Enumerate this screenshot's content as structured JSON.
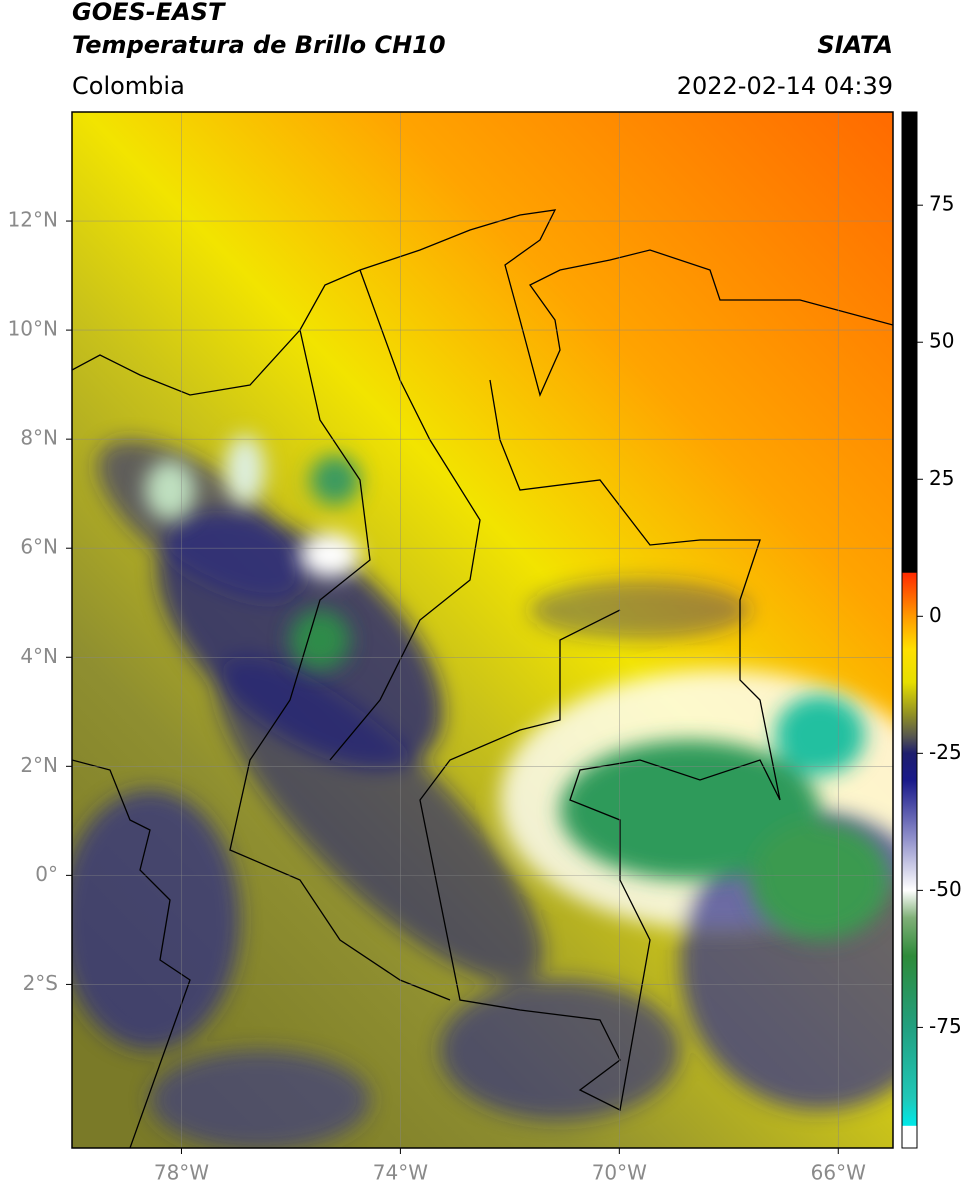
{
  "header": {
    "title": "GOES-EAST",
    "subtitle": "Temperatura de Brillo CH10",
    "source": "SIATA",
    "region": "Colombia",
    "timestamp": "2022-02-14 04:39"
  },
  "map": {
    "xlim": [
      -80,
      -65
    ],
    "ylim": [
      -5,
      14
    ],
    "xticks": [
      {
        "value": -78,
        "label": "78°W"
      },
      {
        "value": -74,
        "label": "74°W"
      },
      {
        "value": -70,
        "label": "70°W"
      },
      {
        "value": -66,
        "label": "66°W"
      }
    ],
    "yticks": [
      {
        "value": 12,
        "label": "12°N"
      },
      {
        "value": 10,
        "label": "10°N"
      },
      {
        "value": 8,
        "label": "8°N"
      },
      {
        "value": 6,
        "label": "6°N"
      },
      {
        "value": 4,
        "label": "4°N"
      },
      {
        "value": 2,
        "label": "2°N"
      },
      {
        "value": 0,
        "label": "0°"
      },
      {
        "value": -2,
        "label": "2°S"
      }
    ],
    "grid": true
  },
  "colorbar": {
    "lim": [
      -97,
      92
    ],
    "ticks": [
      75,
      50,
      25,
      0,
      -25,
      -50,
      -75
    ],
    "stops": [
      {
        "value": -97,
        "color": "#ffffff"
      },
      {
        "value": -93,
        "color": "#ffffff"
      },
      {
        "value": -92.9,
        "color": "#00e8e8"
      },
      {
        "value": -88,
        "color": "#20c8b8"
      },
      {
        "value": -75,
        "color": "#22a080"
      },
      {
        "value": -62,
        "color": "#2e8b3a"
      },
      {
        "value": -55,
        "color": "#80b078"
      },
      {
        "value": -50,
        "color": "#ffffff"
      },
      {
        "value": -40,
        "color": "#8a8ac8"
      },
      {
        "value": -30,
        "color": "#1a1a8a"
      },
      {
        "value": -25,
        "color": "#1e1e6e"
      },
      {
        "value": -22,
        "color": "#555550"
      },
      {
        "value": -18,
        "color": "#8f8f25"
      },
      {
        "value": -12,
        "color": "#e6df00"
      },
      {
        "value": -6,
        "color": "#ffe000"
      },
      {
        "value": 0,
        "color": "#ff9a00"
      },
      {
        "value": 7.9,
        "color": "#ff2a00"
      },
      {
        "value": 8,
        "color": "#000000"
      },
      {
        "value": 92,
        "color": "#000000"
      }
    ]
  }
}
